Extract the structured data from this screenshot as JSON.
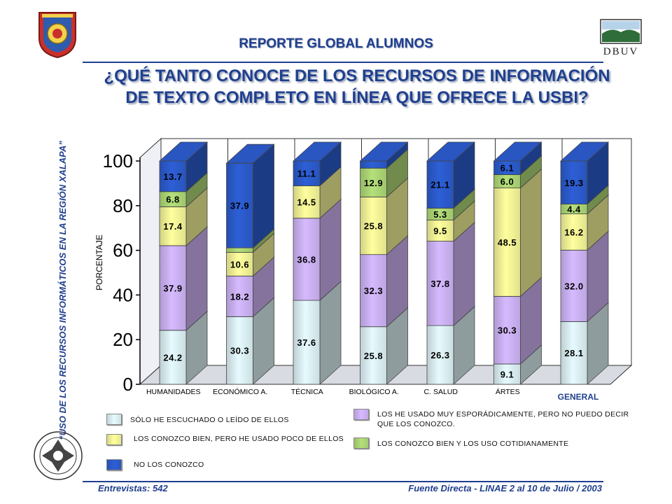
{
  "header": {
    "report_title": "REPORTE GLOBAL ALUMNOS",
    "question": "¿QUÉ TANTO CONOCE DE LOS RECURSOS DE INFORMACIÓN DE TEXTO COMPLETO EN LÍNEA QUE OFRECE LA USBI?"
  },
  "sidebar": {
    "vertical_text": "“USO DE LOS RECURSOS INFORMÁTICOS EN LA REGIÓN XALAPA”"
  },
  "footer": {
    "left": "Entrevistas: 542",
    "right": "Fuente Directa -  LINAE 2 al 10  de Julio / 2003"
  },
  "logos": {
    "dbuv_text": "DBUV"
  },
  "colors": {
    "solo_escuchado": "#e6fbff",
    "muy_esporadico": "#d6baff",
    "conozco_bien_poco": "#ffff9e",
    "no_conozco": "#2d5fd6",
    "uso_cotidiano": "#b4e07a",
    "title_blue": "#1f3f8f"
  },
  "chart_data": {
    "type": "bar",
    "stacked": true,
    "categories": [
      "HUMANIDADES",
      "ECONÓMICO A.",
      "TÉCNICA",
      "BIOLÓGICO A.",
      "C. SALUD",
      "ÁRTES",
      "GENERAL"
    ],
    "ylabel": "PORCENTAJE",
    "ylim": [
      0,
      100
    ],
    "yticks": [
      "0",
      "20",
      "40",
      "60",
      "80",
      "100"
    ],
    "series": [
      {
        "name": "SÓLO HE ESCUCHADO  O LEÍDO DE ELLOS",
        "key": "solo_escuchado",
        "values": [
          24.2,
          30.3,
          37.6,
          25.8,
          26.3,
          9.1,
          28.1
        ],
        "labels": [
          "24.2",
          "30.3",
          "37.6",
          "25.8",
          "26.3",
          "9.1",
          "28.1"
        ]
      },
      {
        "name": "LOS HE USADO MUY ESPORÁDICAMENTE, PERO NO PUEDO DECIR QUE LOS CONOZCO.",
        "key": "muy_esporadico",
        "values": [
          37.9,
          18.2,
          36.8,
          32.3,
          37.8,
          30.3,
          32.0
        ],
        "labels": [
          "37.9",
          "18.2",
          "36.8",
          "32.3",
          "37.8",
          "30.3",
          "32.0"
        ]
      },
      {
        "name": "LOS CONOZCO  BIEN, PERO HE USADO POCO DE ELLOS",
        "key": "conozco_bien_poco",
        "values": [
          17.4,
          10.6,
          14.5,
          25.8,
          9.5,
          48.5,
          16.2
        ],
        "labels": [
          "17.4",
          "10.6",
          "14.5",
          "25.8",
          "9.5",
          "48.5",
          "16.2"
        ]
      },
      {
        "name": "LOS CONOZCO BIEN Y LOS USO COTIDIANAMENTE",
        "key": "uso_cotidiano",
        "values": [
          6.8,
          2.0,
          0.0,
          12.9,
          5.3,
          6.0,
          4.4
        ],
        "labels": [
          "6.8",
          "",
          "",
          "12.9",
          "5.3",
          "6.0",
          "4.4"
        ]
      },
      {
        "name": "NO LOS CONOZCO",
        "key": "no_conozco",
        "values": [
          13.7,
          37.9,
          11.1,
          3.2,
          21.1,
          6.1,
          19.3
        ],
        "labels": [
          "13.7",
          "37.9",
          "11.1",
          "",
          "21.1",
          "6.1",
          "19.3"
        ]
      }
    ],
    "legend": [
      {
        "key": "solo_escuchado",
        "label": "SÓLO HE ESCUCHADO  O LEÍDO DE ELLOS"
      },
      {
        "key": "conozco_bien_poco",
        "label": "LOS CONOZCO  BIEN, PERO HE USADO POCO DE ELLOS"
      },
      {
        "key": "no_conozco",
        "label": "NO LOS CONOZCO"
      },
      {
        "key": "muy_esporadico",
        "label": "LOS HE USADO MUY ESPORÁDICAMENTE, PERO NO PUEDO DECIR QUE LOS CONOZCO."
      },
      {
        "key": "uso_cotidiano",
        "label": "LOS CONOZCO BIEN Y LOS USO COTIDIANAMENTE"
      }
    ],
    "legend_position": "bottom",
    "grid": false
  }
}
